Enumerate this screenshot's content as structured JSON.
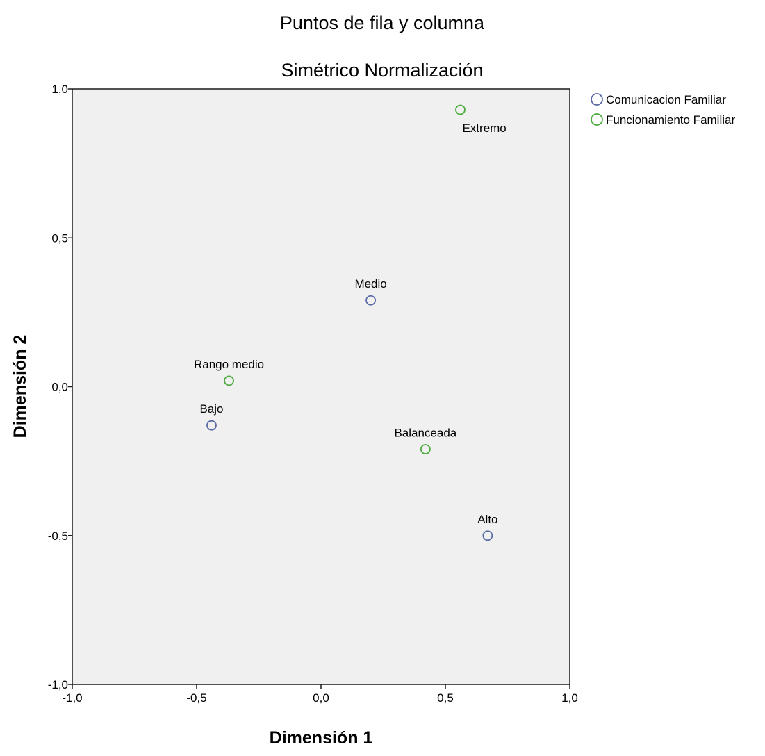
{
  "chart_data": {
    "type": "scatter",
    "title": "Puntos de fila y columna",
    "subtitle": "Simétrico Normalización",
    "xlabel": "Dimensión 1",
    "ylabel": "Dimensión 2",
    "xlim": [
      -1.0,
      1.0
    ],
    "ylim": [
      -1.0,
      1.0
    ],
    "xticks": [
      {
        "value": -1.0,
        "label": "-1,0"
      },
      {
        "value": -0.5,
        "label": "-0,5"
      },
      {
        "value": 0.0,
        "label": "0,0"
      },
      {
        "value": 0.5,
        "label": "0,5"
      },
      {
        "value": 1.0,
        "label": "1,0"
      }
    ],
    "yticks": [
      {
        "value": -1.0,
        "label": "-1,0"
      },
      {
        "value": -0.5,
        "label": "-0,5"
      },
      {
        "value": 0.0,
        "label": "0,0"
      },
      {
        "value": 0.5,
        "label": "0,5"
      },
      {
        "value": 1.0,
        "label": "1,0"
      }
    ],
    "grid": false,
    "legend_position": "top-right",
    "series": [
      {
        "name": "Comunicacion Familiar",
        "color": "#5b6aa6",
        "points": [
          {
            "label": "Medio",
            "x": 0.2,
            "y": 0.29,
            "label_pos": "above"
          },
          {
            "label": "Bajo",
            "x": -0.44,
            "y": -0.13,
            "label_pos": "above"
          },
          {
            "label": "Alto",
            "x": 0.67,
            "y": -0.5,
            "label_pos": "above"
          }
        ]
      },
      {
        "name": "Funcionamiento Familiar",
        "color": "#4caa3e",
        "points": [
          {
            "label": "Extremo",
            "x": 0.56,
            "y": 0.93,
            "label_pos": "below"
          },
          {
            "label": "Rango medio",
            "x": -0.37,
            "y": 0.02,
            "label_pos": "above"
          },
          {
            "label": "Balanceada",
            "x": 0.42,
            "y": -0.21,
            "label_pos": "above"
          }
        ]
      }
    ]
  }
}
